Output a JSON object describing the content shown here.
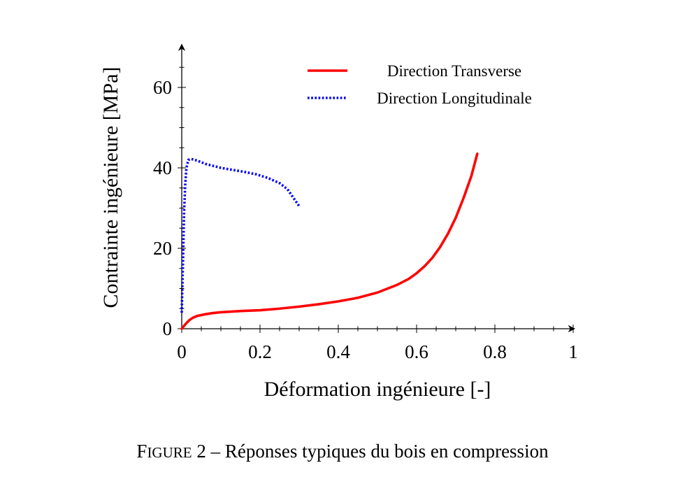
{
  "chart_data": {
    "type": "line",
    "xlabel": "Déformation ingénieure [-]",
    "ylabel": "Contrainte ingénieure [MPa]",
    "xlim": [
      0,
      1
    ],
    "ylim": [
      0,
      70
    ],
    "x_ticks": [
      0,
      0.2,
      0.4,
      0.6,
      0.8,
      1
    ],
    "x_tick_labels": [
      "0",
      "0.2",
      "0.4",
      "0.6",
      "0.8",
      "1"
    ],
    "y_ticks": [
      0,
      20,
      40,
      60
    ],
    "y_tick_labels": [
      "0",
      "20",
      "40",
      "60"
    ],
    "grid": false,
    "legend_position": "top-right",
    "series": [
      {
        "name": "Direction Transverse",
        "color": "#ff0000",
        "style": "solid",
        "points": [
          [
            0,
            0
          ],
          [
            0.01,
            1.2
          ],
          [
            0.02,
            2.2
          ],
          [
            0.03,
            2.8
          ],
          [
            0.04,
            3.2
          ],
          [
            0.06,
            3.6
          ],
          [
            0.08,
            3.9
          ],
          [
            0.1,
            4.1
          ],
          [
            0.15,
            4.4
          ],
          [
            0.2,
            4.6
          ],
          [
            0.25,
            5.0
          ],
          [
            0.3,
            5.5
          ],
          [
            0.35,
            6.1
          ],
          [
            0.4,
            6.8
          ],
          [
            0.45,
            7.7
          ],
          [
            0.5,
            9.0
          ],
          [
            0.55,
            10.9
          ],
          [
            0.58,
            12.4
          ],
          [
            0.6,
            13.8
          ],
          [
            0.62,
            15.5
          ],
          [
            0.64,
            17.6
          ],
          [
            0.66,
            20.3
          ],
          [
            0.68,
            23.6
          ],
          [
            0.7,
            27.6
          ],
          [
            0.72,
            32.5
          ],
          [
            0.74,
            38.0
          ],
          [
            0.755,
            43.5
          ]
        ]
      },
      {
        "name": "Direction Longitudinale",
        "color": "#0000ff",
        "style": "dotted",
        "points": [
          [
            0,
            4
          ],
          [
            0.003,
            16
          ],
          [
            0.006,
            29
          ],
          [
            0.009,
            36
          ],
          [
            0.012,
            40
          ],
          [
            0.017,
            42
          ],
          [
            0.025,
            42.2
          ],
          [
            0.04,
            41.8
          ],
          [
            0.06,
            41.0
          ],
          [
            0.08,
            40.5
          ],
          [
            0.1,
            40.0
          ],
          [
            0.13,
            39.5
          ],
          [
            0.16,
            39.0
          ],
          [
            0.19,
            38.4
          ],
          [
            0.22,
            37.5
          ],
          [
            0.25,
            36.2
          ],
          [
            0.27,
            34.7
          ],
          [
            0.285,
            32.6
          ],
          [
            0.3,
            30.5
          ]
        ]
      }
    ]
  },
  "caption": {
    "figure_first": "F",
    "figure_rest": "IGURE",
    "number": "2",
    "separator": "–",
    "text": "Réponses typiques du bois en compression"
  }
}
